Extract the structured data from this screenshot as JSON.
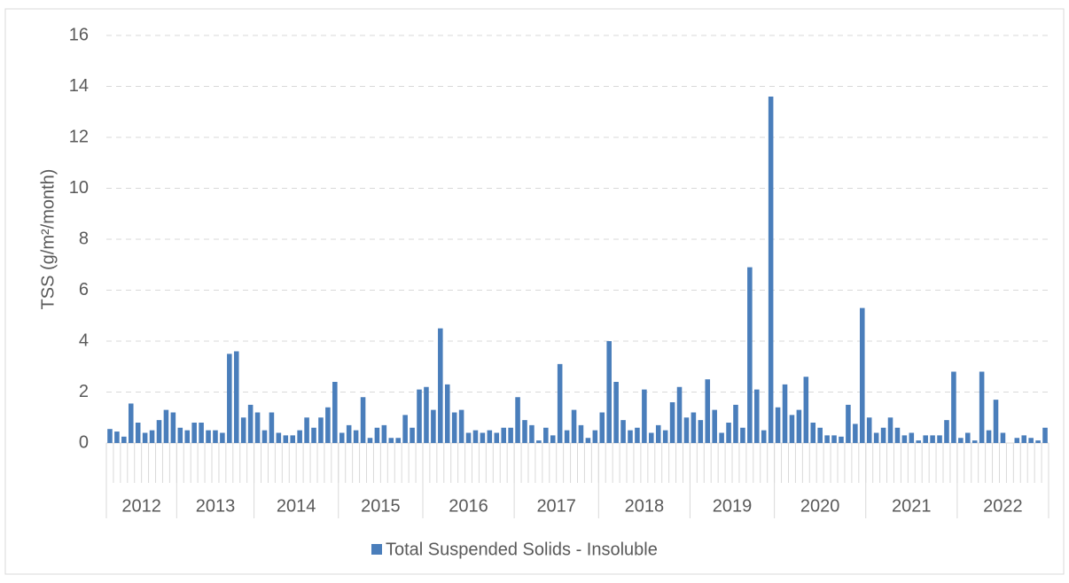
{
  "chart_data": {
    "type": "bar",
    "y_label": "TSS (g/m²/month)",
    "categories": [
      null,
      null,
      null,
      null,
      null,
      null,
      null,
      null,
      null,
      null,
      null,
      null,
      null,
      null,
      null,
      null,
      null,
      null,
      null,
      null,
      null,
      null,
      null,
      null,
      null,
      null,
      null,
      null,
      null,
      null,
      null,
      null,
      null,
      null,
      null,
      null,
      null,
      null,
      null,
      null,
      null,
      null,
      null,
      null,
      null,
      null,
      null,
      null,
      null,
      null,
      null,
      null,
      null,
      null,
      null,
      null,
      null,
      null,
      null,
      null,
      null,
      null,
      null,
      null,
      null,
      null,
      null,
      null,
      null,
      null,
      null,
      null,
      null,
      null,
      null,
      null,
      null,
      null,
      null,
      null,
      null,
      null,
      null,
      null,
      null,
      null,
      null,
      null,
      null,
      null,
      null,
      null,
      null,
      null,
      null,
      null,
      null,
      null,
      null,
      null,
      null,
      null,
      null,
      null,
      null,
      null,
      null,
      null,
      null,
      null,
      null,
      null,
      null,
      null,
      null,
      null,
      null,
      null,
      null,
      null,
      null,
      null,
      null,
      null,
      null,
      null,
      null,
      null,
      null,
      null,
      null,
      null,
      null,
      null
    ],
    "groups": [
      {
        "label": "2012",
        "count": 10
      },
      {
        "label": "2013",
        "count": 11
      },
      {
        "label": "2014",
        "count": 12
      },
      {
        "label": "2015",
        "count": 12
      },
      {
        "label": "2016",
        "count": 13
      },
      {
        "label": "2017",
        "count": 12
      },
      {
        "label": "2018",
        "count": 13
      },
      {
        "label": "2019",
        "count": 12
      },
      {
        "label": "2020",
        "count": 13
      },
      {
        "label": "2021",
        "count": 13
      },
      {
        "label": "2022",
        "count": 13
      }
    ],
    "series": [
      {
        "name": "Total Suspended Solids - Insoluble",
        "color": "#4a7ebb",
        "values": [
          0.55,
          0.45,
          0.25,
          1.55,
          0.8,
          0.4,
          0.5,
          0.9,
          1.3,
          1.2,
          0.6,
          0.5,
          0.8,
          0.8,
          0.5,
          0.5,
          0.4,
          3.5,
          3.6,
          1.0,
          1.5,
          1.2,
          0.5,
          1.2,
          0.4,
          0.3,
          0.3,
          0.5,
          1.0,
          0.6,
          1.0,
          1.4,
          2.4,
          0.4,
          0.7,
          0.5,
          1.8,
          0.2,
          0.6,
          0.7,
          0.2,
          0.2,
          1.1,
          0.6,
          2.1,
          2.2,
          1.3,
          4.5,
          2.3,
          1.2,
          1.3,
          0.4,
          0.5,
          0.4,
          0.5,
          0.4,
          0.6,
          0.6,
          1.8,
          0.9,
          0.7,
          0.1,
          0.6,
          0.3,
          3.1,
          0.5,
          1.3,
          0.7,
          0.2,
          0.5,
          1.2,
          4.0,
          2.4,
          0.9,
          0.5,
          0.6,
          2.1,
          0.4,
          0.7,
          0.5,
          1.6,
          2.2,
          1.0,
          1.2,
          0.9,
          2.5,
          1.3,
          0.4,
          0.8,
          1.5,
          0.6,
          6.9,
          2.1,
          0.5,
          13.6,
          1.4,
          2.3,
          1.1,
          1.3,
          2.6,
          0.8,
          0.6,
          0.3,
          0.3,
          0.25,
          1.5,
          0.75,
          5.3,
          1.0,
          0.4,
          0.6,
          1.0,
          0.6,
          0.3,
          0.4,
          0.1,
          0.3,
          0.3,
          0.3,
          0.9,
          2.8,
          0.2,
          0.4,
          0.1,
          2.8,
          0.5,
          1.7,
          0.4,
          0,
          0.2,
          0.3,
          0.2,
          0.1,
          0.6
        ]
      }
    ],
    "ylim": [
      0,
      16
    ],
    "yticks": [
      0,
      2,
      4,
      6,
      8,
      10,
      12,
      14,
      16
    ],
    "grid": true,
    "legend": "bottom"
  }
}
